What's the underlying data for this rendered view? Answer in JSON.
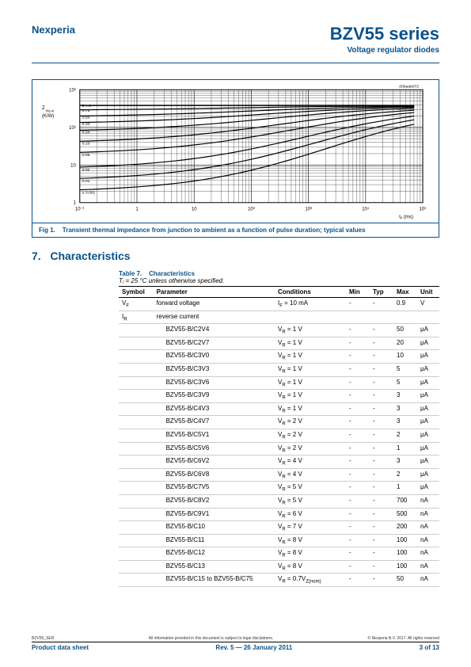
{
  "header": {
    "company": "Nexperia",
    "series_title": "BZV55 series",
    "subtitle": "Voltage regulator diodes"
  },
  "figure": {
    "caption_num": "Fig 1.",
    "caption_text": "Transient thermal impedance from junction to ambient as a function of pulse duration; typical values",
    "chart": {
      "type": "line-loglog",
      "code": "006aab072",
      "xlabel": "tₚ (ms)",
      "ylabel": "Z_th(j-a) (K/W)",
      "xlim": [
        0.1,
        100000
      ],
      "ylim": [
        1,
        1000
      ],
      "x_ticks": [
        "10⁻¹",
        "1",
        "10",
        "10²",
        "10³",
        "10⁴",
        "10⁵"
      ],
      "y_ticks": [
        "1",
        "10",
        "10²",
        "10³"
      ],
      "delta_labels": [
        "δ = 1",
        "0.75",
        "0.50",
        "0.33",
        "0.20",
        "0.10",
        "0.05",
        "0.02",
        "0.01",
        "≤ 0.001"
      ],
      "delta_start_y": [
        380,
        285,
        190,
        125,
        76,
        38,
        19,
        7.6,
        3.8,
        1.9
      ],
      "colors": {
        "grid": "#000000",
        "line": "#000000",
        "bg": "#ffffff",
        "text": "#000000"
      },
      "grid_linewidth": 0.3,
      "line_linewidth": 1.2,
      "axis_fontsize": 6
    }
  },
  "section": {
    "number": "7.",
    "title": "Characteristics"
  },
  "table": {
    "title_num": "Table 7.",
    "title_text": "Characteristics",
    "caption": "Tⱼ = 25 °C unless otherwise specified.",
    "headers": [
      "Symbol",
      "Parameter",
      "Conditions",
      "Min",
      "Typ",
      "Max",
      "Unit"
    ],
    "rows": [
      {
        "symbol": "V_F",
        "param": "forward voltage",
        "cond": "I_F = 10 mA",
        "min": "-",
        "typ": "-",
        "max": "0.9",
        "unit": "V",
        "indent": false
      },
      {
        "symbol": "I_R",
        "param": "reverse current",
        "cond": "",
        "min": "",
        "typ": "",
        "max": "",
        "unit": "",
        "indent": false
      },
      {
        "symbol": "",
        "param": "BZV55-B/C2V4",
        "cond": "V_R = 1 V",
        "min": "-",
        "typ": "-",
        "max": "50",
        "unit": "μA",
        "indent": true
      },
      {
        "symbol": "",
        "param": "BZV55-B/C2V7",
        "cond": "V_R = 1 V",
        "min": "-",
        "typ": "-",
        "max": "20",
        "unit": "μA",
        "indent": true
      },
      {
        "symbol": "",
        "param": "BZV55-B/C3V0",
        "cond": "V_R = 1 V",
        "min": "-",
        "typ": "-",
        "max": "10",
        "unit": "μA",
        "indent": true
      },
      {
        "symbol": "",
        "param": "BZV55-B/C3V3",
        "cond": "V_R = 1 V",
        "min": "-",
        "typ": "-",
        "max": "5",
        "unit": "μA",
        "indent": true
      },
      {
        "symbol": "",
        "param": "BZV55-B/C3V6",
        "cond": "V_R = 1 V",
        "min": "-",
        "typ": "-",
        "max": "5",
        "unit": "μA",
        "indent": true
      },
      {
        "symbol": "",
        "param": "BZV55-B/C3V9",
        "cond": "V_R = 1 V",
        "min": "-",
        "typ": "-",
        "max": "3",
        "unit": "μA",
        "indent": true
      },
      {
        "symbol": "",
        "param": "BZV55-B/C4V3",
        "cond": "V_R = 1 V",
        "min": "-",
        "typ": "-",
        "max": "3",
        "unit": "μA",
        "indent": true
      },
      {
        "symbol": "",
        "param": "BZV55-B/C4V7",
        "cond": "V_R = 2 V",
        "min": "-",
        "typ": "-",
        "max": "3",
        "unit": "μA",
        "indent": true
      },
      {
        "symbol": "",
        "param": "BZV55-B/C5V1",
        "cond": "V_R = 2 V",
        "min": "-",
        "typ": "-",
        "max": "2",
        "unit": "μA",
        "indent": true
      },
      {
        "symbol": "",
        "param": "BZV55-B/C5V6",
        "cond": "V_R = 2 V",
        "min": "-",
        "typ": "-",
        "max": "1",
        "unit": "μA",
        "indent": true
      },
      {
        "symbol": "",
        "param": "BZV55-B/C6V2",
        "cond": "V_R = 4 V",
        "min": "-",
        "typ": "-",
        "max": "3",
        "unit": "μA",
        "indent": true
      },
      {
        "symbol": "",
        "param": "BZV55-B/C6V8",
        "cond": "V_R = 4 V",
        "min": "-",
        "typ": "-",
        "max": "2",
        "unit": "μA",
        "indent": true
      },
      {
        "symbol": "",
        "param": "BZV55-B/C7V5",
        "cond": "V_R = 5 V",
        "min": "-",
        "typ": "-",
        "max": "1",
        "unit": "μA",
        "indent": true
      },
      {
        "symbol": "",
        "param": "BZV55-B/C8V2",
        "cond": "V_R = 5 V",
        "min": "-",
        "typ": "-",
        "max": "700",
        "unit": "nA",
        "indent": true
      },
      {
        "symbol": "",
        "param": "BZV55-B/C9V1",
        "cond": "V_R = 6 V",
        "min": "-",
        "typ": "-",
        "max": "500",
        "unit": "nA",
        "indent": true
      },
      {
        "symbol": "",
        "param": "BZV55-B/C10",
        "cond": "V_R = 7 V",
        "min": "-",
        "typ": "-",
        "max": "200",
        "unit": "nA",
        "indent": true
      },
      {
        "symbol": "",
        "param": "BZV55-B/C11",
        "cond": "V_R = 8 V",
        "min": "-",
        "typ": "-",
        "max": "100",
        "unit": "nA",
        "indent": true
      },
      {
        "symbol": "",
        "param": "BZV55-B/C12",
        "cond": "V_R = 8 V",
        "min": "-",
        "typ": "-",
        "max": "100",
        "unit": "nA",
        "indent": true
      },
      {
        "symbol": "",
        "param": "BZV55-B/C13",
        "cond": "V_R = 8 V",
        "min": "-",
        "typ": "-",
        "max": "100",
        "unit": "nA",
        "indent": true
      },
      {
        "symbol": "",
        "param": "BZV55-B/C15 to BZV55-B/C75",
        "cond": "V_R = 0.7V_Z(nom)",
        "min": "-",
        "typ": "-",
        "max": "50",
        "unit": "nA",
        "indent": true
      }
    ]
  },
  "footer": {
    "doc_id": "BZV55_SER",
    "disclaimer": "All information provided in this document is subject to legal disclaimers.",
    "copyright": "© Nexperia B.V. 2017. All rights reserved",
    "pds": "Product data sheet",
    "revision": "Rev. 5 — 26 January 2011",
    "page": "3 of 13"
  }
}
